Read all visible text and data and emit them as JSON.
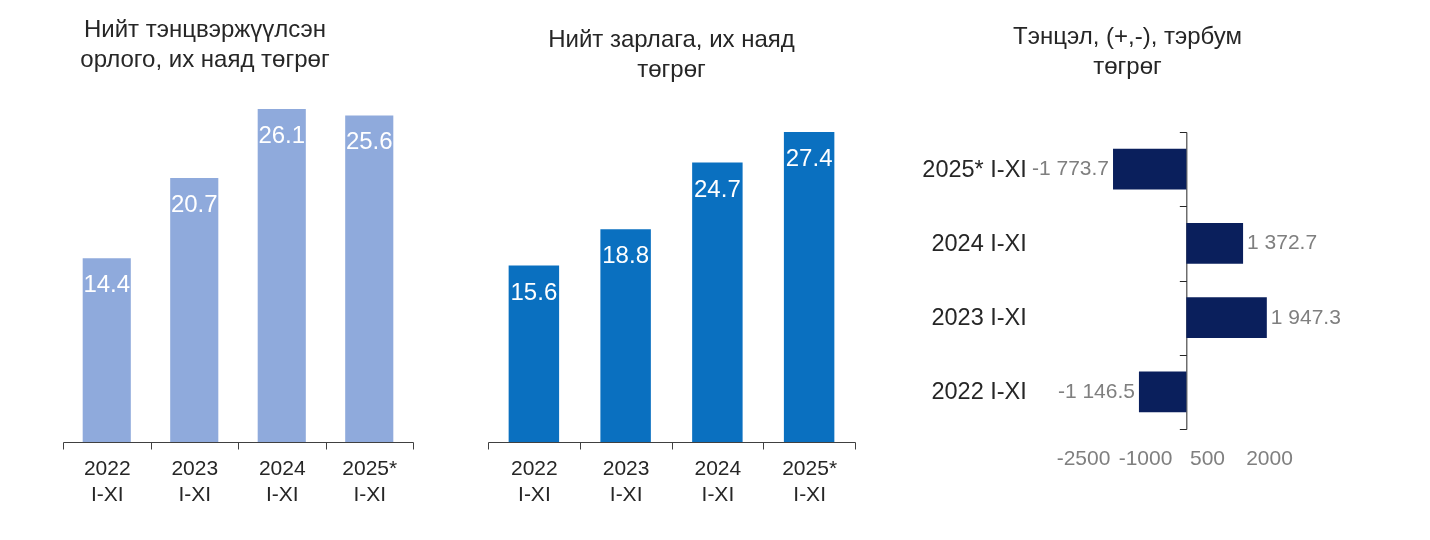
{
  "chart_data": [
    {
      "type": "bar",
      "title": "Нийт тэнцвэржүүлсэн орлого, их наяд төгрөг",
      "categories": [
        "2022 I-XI",
        "2023 I-XI",
        "2024 I-XI",
        "2025* I-XI"
      ],
      "values": [
        14.4,
        20.7,
        26.1,
        25.6
      ],
      "color": "#8faadc",
      "data_labels": true,
      "tick_labels": "x"
    },
    {
      "type": "bar",
      "title": "Нийт зарлага, их наяд төгрөг",
      "categories": [
        "2022 I-XI",
        "2023 I-XI",
        "2024 I-XI",
        "2025* I-XI"
      ],
      "values": [
        15.6,
        18.8,
        24.7,
        27.4
      ],
      "color": "#0a70c0",
      "data_labels": true,
      "tick_labels": "x"
    },
    {
      "type": "bar",
      "orientation": "horizontal",
      "title": "Тэнцэл, (+,-), тэрбум төгрөг",
      "categories": [
        "2025* I-XI",
        "2024 I-XI",
        "2023 I-XI",
        "2022 I-XI"
      ],
      "values": [
        -1773.7,
        1372.7,
        1947.3,
        -1146.5
      ],
      "value_labels": [
        "-1 773.7",
        "1 372.7",
        "1 947.3",
        "-1 146.5"
      ],
      "color": "#0a1f5c",
      "xlim": [
        -2500,
        2000
      ],
      "xticks": [
        -2500,
        -1000,
        500,
        2000
      ]
    }
  ]
}
